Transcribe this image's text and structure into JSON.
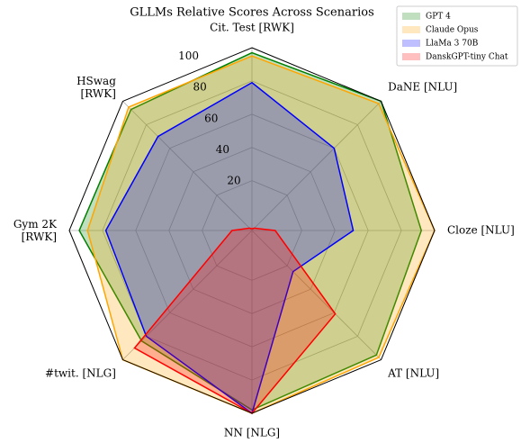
{
  "chart_data": {
    "type": "radar",
    "title": "GLLMs Relative Scores Across Scenarios",
    "categories": [
      "Cit. Test [RWK]",
      "DaNE [NLU]",
      "Cloze [NLU]",
      "AT [NLU]",
      "NN [NLG]",
      "#twit. [NLG]",
      "Gym 2K\n[RWK]",
      "HSwag\n[RWK]"
    ],
    "series": [
      {
        "name": "GPT 4",
        "color": "#008000",
        "values": [
          97,
          100,
          92,
          96,
          98,
          84,
          94,
          93
        ]
      },
      {
        "name": "Claude Opus",
        "color": "#ffa500",
        "values": [
          95,
          98,
          100,
          98,
          100,
          100,
          89,
          95
        ]
      },
      {
        "name": "LlaMa 3 70B",
        "color": "#0000ff",
        "values": [
          79,
          60,
          51,
          25,
          100,
          80,
          78,
          70
        ]
      },
      {
        "name": "DanskGPT-tiny Chat",
        "color": "#ff0000",
        "values": [
          -9,
          -8,
          4,
          61,
          100,
          90,
          2,
          -8
        ]
      }
    ],
    "ylim": [
      -10,
      100
    ],
    "yticks": [
      20,
      40,
      60,
      80,
      100
    ],
    "grid": true,
    "legend": "upper right"
  }
}
